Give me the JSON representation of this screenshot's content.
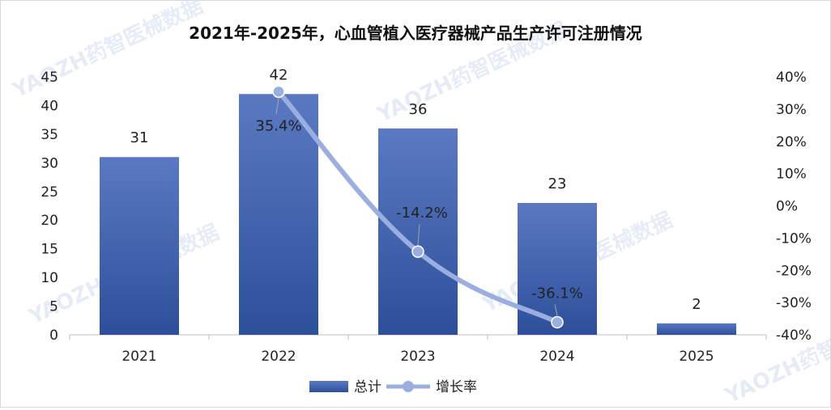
{
  "chart_data": {
    "type": "bar",
    "title": "2021年-2025年，心血管植入医疗器械产品生产许可注册情况",
    "categories": [
      "2021",
      "2022",
      "2023",
      "2024",
      "2025"
    ],
    "series": [
      {
        "name": "总计",
        "type": "bar",
        "axis": "left",
        "values": [
          31,
          42,
          36,
          23,
          2
        ],
        "labels": [
          "31",
          "42",
          "36",
          "23",
          "2"
        ]
      },
      {
        "name": "增长率",
        "type": "line",
        "axis": "right",
        "values": [
          null,
          35.4,
          -14.2,
          -36.1,
          null
        ],
        "labels": [
          "",
          "35.4%",
          "-14.2%",
          "-36.1%",
          ""
        ]
      }
    ],
    "y_left": {
      "min": 0,
      "max": 45,
      "step": 5,
      "ticks": [
        "0",
        "5",
        "10",
        "15",
        "20",
        "25",
        "30",
        "35",
        "40",
        "45"
      ]
    },
    "y_right": {
      "min": -40,
      "max": 40,
      "step": 10,
      "ticks": [
        "-40%",
        "-30%",
        "-20%",
        "-10%",
        "0%",
        "10%",
        "20%",
        "30%",
        "40%"
      ]
    },
    "legend_position": "bottom"
  },
  "watermark_text": "YAOZH药智医械数据",
  "colors": {
    "bar_top": "#5a79c2",
    "bar_bottom": "#2d4f9a",
    "line": "#9aaee0",
    "marker": "#9aaee0"
  }
}
